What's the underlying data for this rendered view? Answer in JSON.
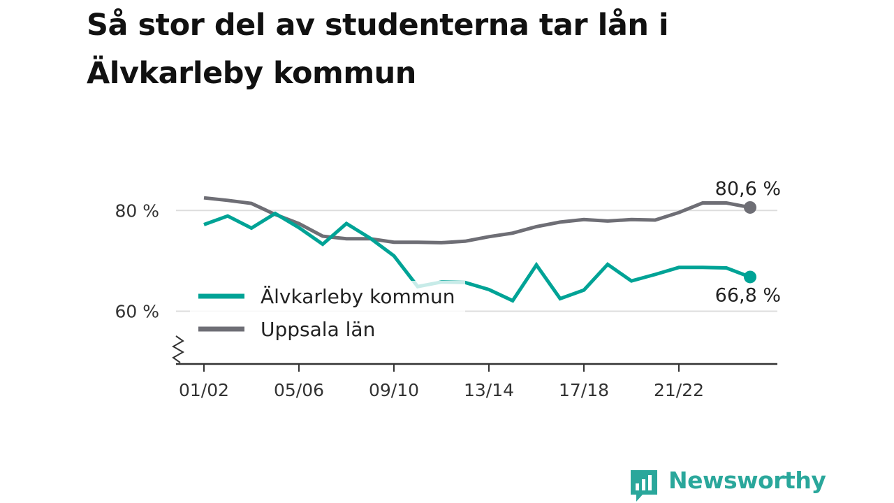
{
  "title": "Så stor del av studenterna tar lån i Älvkarleby kommun",
  "brand": {
    "name": "Newsworthy",
    "color": "#2aa79b",
    "icon": "bar-chart-speech-bubble-icon"
  },
  "chart_data": {
    "type": "line",
    "x": [
      "01/02",
      "02/03",
      "03/04",
      "04/05",
      "05/06",
      "06/07",
      "07/08",
      "08/09",
      "09/10",
      "10/11",
      "11/12",
      "12/13",
      "13/14",
      "14/15",
      "15/16",
      "16/17",
      "17/18",
      "18/19",
      "19/20",
      "20/21",
      "21/22",
      "22/23",
      "23/24",
      "24/25"
    ],
    "x_tick_labels": [
      "01/02",
      "05/06",
      "09/10",
      "13/14",
      "17/18",
      "21/22"
    ],
    "y_tick_labels": [
      "60 %",
      "80 %"
    ],
    "y_ticks": [
      60,
      80
    ],
    "ylim": [
      53,
      86
    ],
    "y_axis_break": true,
    "grid": true,
    "legend_position": "left-middle",
    "series": [
      {
        "name": "Älvkarleby kommun",
        "color": "#00a396",
        "values": [
          77.2,
          78.9,
          76.5,
          79.4,
          76.6,
          73.3,
          77.4,
          74.5,
          71.0,
          64.9,
          65.8,
          65.7,
          64.3,
          62.1,
          69.2,
          62.5,
          64.2,
          69.3,
          66.0,
          67.3,
          68.7,
          68.7,
          68.6,
          66.8
        ],
        "end_label": "66,8 %"
      },
      {
        "name": "Uppsala län",
        "color": "#6e6e75",
        "values": [
          82.5,
          82.0,
          81.4,
          79.2,
          77.4,
          74.9,
          74.4,
          74.4,
          73.7,
          73.7,
          73.6,
          73.9,
          74.8,
          75.5,
          76.8,
          77.7,
          78.2,
          77.9,
          78.2,
          78.1,
          79.6,
          81.5,
          81.5,
          80.6
        ],
        "end_label": "80,6 %"
      }
    ]
  }
}
